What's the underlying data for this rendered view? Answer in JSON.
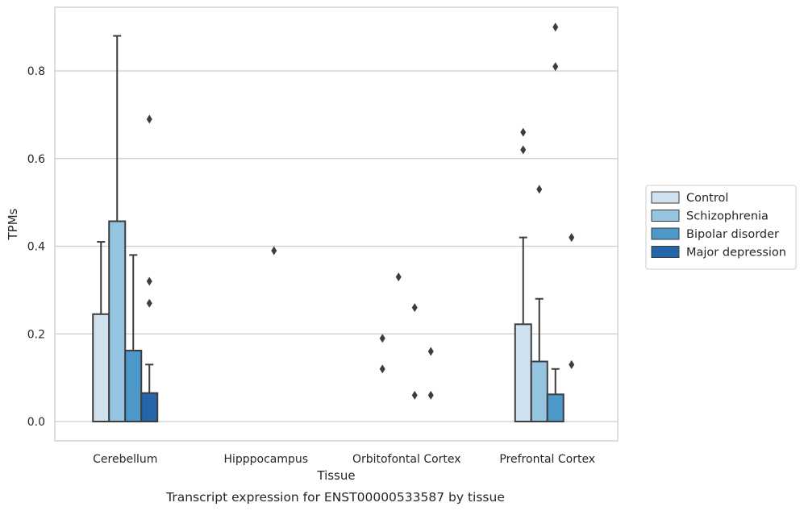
{
  "chart_data": {
    "type": "bar",
    "xlabel": "Tissue",
    "ylabel": "TPMs",
    "caption": "Transcript expression for ENST00000533587 by tissue",
    "ylim": [
      -0.045,
      0.945
    ],
    "yticks": [
      0.0,
      0.2,
      0.4,
      0.6,
      0.8
    ],
    "ytick_labels": [
      "0.0",
      "0.2",
      "0.4",
      "0.6",
      "0.8"
    ],
    "grid": true,
    "legend_position": "right",
    "categories": [
      "Cerebellum",
      "Hipppocampus",
      "Orbitofontal Cortex",
      "Prefrontal Cortex"
    ],
    "series": [
      {
        "name": "Control",
        "color": "#d0e1f0",
        "values": [
          0.245,
          0.0,
          0.0,
          0.222
        ],
        "errors_upper": [
          0.41,
          null,
          null,
          0.42
        ],
        "outliers": [
          [],
          [],
          [
            0.19,
            0.12
          ],
          [
            0.66,
            0.62
          ]
        ]
      },
      {
        "name": "Schizophrenia",
        "color": "#94c4df",
        "values": [
          0.457,
          0.0,
          0.0,
          0.137
        ],
        "errors_upper": [
          0.88,
          null,
          null,
          0.28
        ],
        "outliers": [
          [],
          [],
          [
            0.33
          ],
          [
            0.53
          ]
        ]
      },
      {
        "name": "Bipolar disorder",
        "color": "#4b98c9",
        "values": [
          0.162,
          0.0,
          0.0,
          0.062
        ],
        "errors_upper": [
          0.38,
          null,
          null,
          0.12
        ],
        "outliers": [
          [],
          [
            0.39
          ],
          [
            0.26,
            0.06
          ],
          [
            0.9,
            0.81
          ]
        ]
      },
      {
        "name": "Major depression",
        "color": "#2565a9",
        "values": [
          0.065,
          0.0,
          0.0,
          0.0
        ],
        "errors_upper": [
          0.13,
          null,
          null,
          null
        ],
        "outliers": [
          [
            0.69,
            0.32,
            0.27
          ],
          [],
          [
            0.16,
            0.06
          ],
          [
            0.42,
            0.13
          ]
        ]
      }
    ]
  }
}
